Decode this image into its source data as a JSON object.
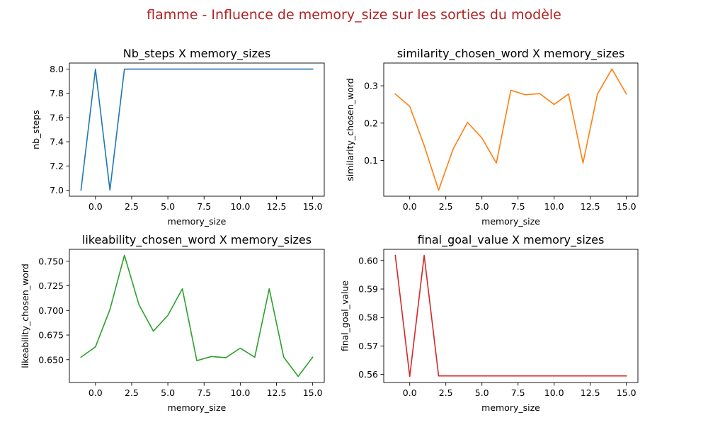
{
  "suptitle": "flamme - Influence de memory_size sur les sorties du modèle",
  "colors": {
    "suptitle": "#b22222"
  },
  "chart_data": [
    {
      "type": "line",
      "title": "Nb_steps X memory_sizes",
      "xlabel": "memory_size",
      "ylabel": "nb_steps",
      "color": "#1f77b4",
      "x": [
        -1,
        0,
        1,
        2,
        3,
        4,
        5,
        6,
        7,
        8,
        9,
        10,
        11,
        12,
        13,
        14,
        15
      ],
      "y": [
        7.0,
        8.0,
        7.0,
        8.0,
        8.0,
        8.0,
        8.0,
        8.0,
        8.0,
        8.0,
        8.0,
        8.0,
        8.0,
        8.0,
        8.0,
        8.0,
        8.0
      ],
      "xlim": [
        -1.8,
        15.8
      ],
      "ylim": [
        6.95,
        8.05
      ],
      "xticks": [
        0.0,
        2.5,
        5.0,
        7.5,
        10.0,
        12.5,
        15.0
      ],
      "xtick_labels": [
        "0.0",
        "2.5",
        "5.0",
        "7.5",
        "10.0",
        "12.5",
        "15.0"
      ],
      "yticks": [
        7.0,
        7.2,
        7.4,
        7.6,
        7.8,
        8.0
      ],
      "ytick_labels": [
        "7.0",
        "7.2",
        "7.4",
        "7.6",
        "7.8",
        "8.0"
      ],
      "grid": false
    },
    {
      "type": "line",
      "title": "similarity_chosen_word X memory_sizes",
      "xlabel": "memory_size",
      "ylabel": "similarity_chosen_word",
      "color": "#ff7f0e",
      "x": [
        -1,
        0,
        1,
        2,
        3,
        4,
        5,
        6,
        7,
        8,
        9,
        10,
        11,
        12,
        13,
        14,
        15
      ],
      "y": [
        0.278,
        0.245,
        0.14,
        0.02,
        0.13,
        0.202,
        0.16,
        0.093,
        0.288,
        0.276,
        0.279,
        0.25,
        0.278,
        0.093,
        0.278,
        0.345,
        0.278
      ],
      "xlim": [
        -1.8,
        15.8
      ],
      "ylim": [
        0.004,
        0.361
      ],
      "xticks": [
        0.0,
        2.5,
        5.0,
        7.5,
        10.0,
        12.5,
        15.0
      ],
      "xtick_labels": [
        "0.0",
        "2.5",
        "5.0",
        "7.5",
        "10.0",
        "12.5",
        "15.0"
      ],
      "yticks": [
        0.1,
        0.2,
        0.3
      ],
      "ytick_labels": [
        "0.1",
        "0.2",
        "0.3"
      ],
      "grid": false
    },
    {
      "type": "line",
      "title": "likeability_chosen_word X memory_sizes",
      "xlabel": "memory_size",
      "ylabel": "likeability_chosen_word",
      "color": "#2ca02c",
      "x": [
        -1,
        0,
        1,
        2,
        3,
        4,
        5,
        6,
        7,
        8,
        9,
        10,
        11,
        12,
        13,
        14,
        15
      ],
      "y": [
        0.6525,
        0.663,
        0.701,
        0.756,
        0.706,
        0.679,
        0.695,
        0.722,
        0.649,
        0.6532,
        0.652,
        0.6617,
        0.6525,
        0.722,
        0.6525,
        0.633,
        0.6525
      ],
      "xlim": [
        -1.8,
        15.8
      ],
      "ylim": [
        0.6268,
        0.7621
      ],
      "xticks": [
        0.0,
        2.5,
        5.0,
        7.5,
        10.0,
        12.5,
        15.0
      ],
      "xtick_labels": [
        "0.0",
        "2.5",
        "5.0",
        "7.5",
        "10.0",
        "12.5",
        "15.0"
      ],
      "yticks": [
        0.65,
        0.675,
        0.7,
        0.725,
        0.75
      ],
      "ytick_labels": [
        "0.650",
        "0.675",
        "0.700",
        "0.725",
        "0.750"
      ],
      "grid": false
    },
    {
      "type": "line",
      "title": "final_goal_value X memory_sizes",
      "xlabel": "memory_size",
      "ylabel": "final_goal_value",
      "color": "#d62728",
      "x": [
        -1,
        0,
        1,
        2,
        3,
        4,
        5,
        6,
        7,
        8,
        9,
        10,
        11,
        12,
        13,
        14,
        15
      ],
      "y": [
        0.6018,
        0.5593,
        0.6018,
        0.5595,
        0.5595,
        0.5595,
        0.5595,
        0.5595,
        0.5595,
        0.5595,
        0.5595,
        0.5595,
        0.5595,
        0.5595,
        0.5595,
        0.5595,
        0.5595
      ],
      "xlim": [
        -1.8,
        15.8
      ],
      "ylim": [
        0.55718,
        0.60393
      ],
      "xticks": [
        0.0,
        2.5,
        5.0,
        7.5,
        10.0,
        12.5,
        15.0
      ],
      "xtick_labels": [
        "0.0",
        "2.5",
        "5.0",
        "7.5",
        "10.0",
        "12.5",
        "15.0"
      ],
      "yticks": [
        0.56,
        0.57,
        0.58,
        0.59,
        0.6
      ],
      "ytick_labels": [
        "0.56",
        "0.57",
        "0.58",
        "0.59",
        "0.60"
      ],
      "grid": false
    }
  ]
}
